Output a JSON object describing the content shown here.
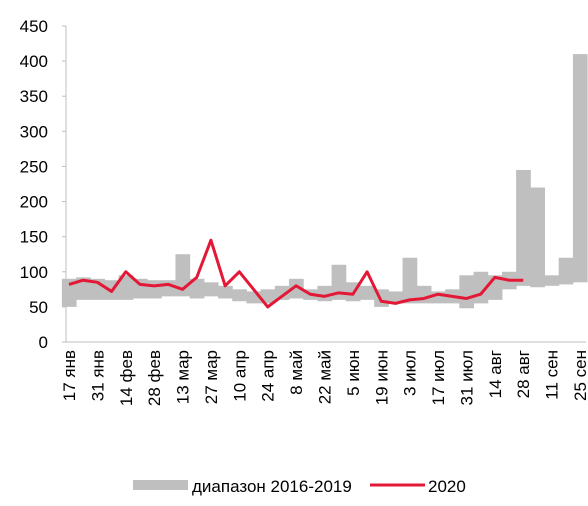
{
  "chart_data": {
    "type": "range-line",
    "categories": [
      "17 янв",
      null,
      "31 янв",
      null,
      "14 фев",
      null,
      "28 фев",
      null,
      "13 мар",
      null,
      "27 мар",
      null,
      "10 апр",
      null,
      "24 апр",
      null,
      "8 май",
      null,
      "22 май",
      null,
      "5 июн",
      null,
      "19 июн",
      null,
      "3 июл",
      null,
      "17 июл",
      null,
      "31 июл",
      null,
      "14 авг",
      null,
      "28 авг",
      null,
      "11 сен",
      null,
      "25 сен"
    ],
    "series": [
      {
        "name": "диапазон 2016-2019",
        "color": "#bfbfbf",
        "low": [
          50,
          60,
          60,
          60,
          60,
          62,
          62,
          65,
          65,
          62,
          65,
          62,
          58,
          55,
          55,
          60,
          62,
          60,
          58,
          60,
          58,
          60,
          50,
          55,
          55,
          55,
          55,
          55,
          48,
          55,
          60,
          75,
          80,
          78,
          80,
          82,
          85
        ],
        "high": [
          90,
          92,
          90,
          88,
          95,
          90,
          88,
          88,
          125,
          90,
          85,
          80,
          75,
          72,
          75,
          80,
          90,
          75,
          80,
          110,
          85,
          80,
          75,
          72,
          120,
          80,
          72,
          75,
          95,
          100,
          95,
          100,
          245,
          220,
          95,
          120,
          410
        ]
      },
      {
        "name": "2020",
        "color": "#e31837",
        "values": [
          82,
          88,
          85,
          72,
          100,
          82,
          80,
          82,
          75,
          92,
          145,
          80,
          100,
          75,
          50,
          65,
          80,
          68,
          65,
          70,
          68,
          100,
          58,
          55,
          60,
          62,
          68,
          65,
          62,
          68,
          92,
          88,
          88,
          null,
          null,
          null,
          null
        ]
      }
    ],
    "ylim": [
      0,
      450
    ],
    "yticks": [
      0,
      50,
      100,
      150,
      200,
      250,
      300,
      350,
      400,
      450
    ],
    "grid": false
  }
}
